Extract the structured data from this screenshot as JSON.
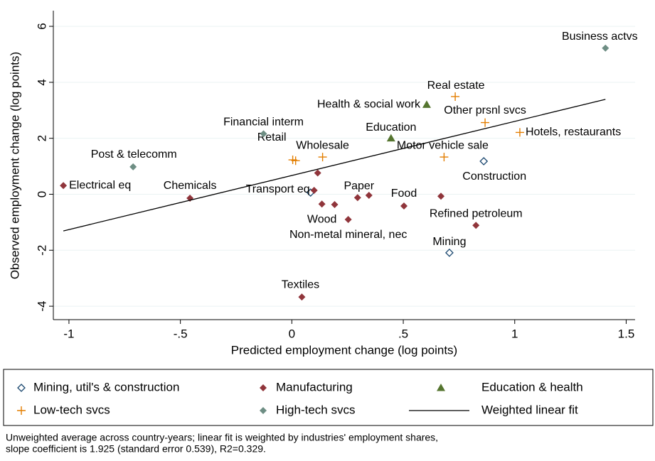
{
  "chart_data": {
    "type": "scatter",
    "x_label": "Predicted employment change (log points)",
    "y_label": "Observed employment change (log points)",
    "xlim": [
      -1.07,
      1.54
    ],
    "ylim": [
      -4.48,
      6.56
    ],
    "xticks": [
      -1,
      {
        "value": -0.5,
        "label": "-.5"
      },
      0,
      {
        "value": 0.5,
        "label": ".5"
      },
      1,
      1.5
    ],
    "yticks": [
      -4,
      -2,
      0,
      2,
      4,
      6
    ],
    "grid": true,
    "series": [
      {
        "name": "Mining, util's & construction",
        "color": "#1a476f",
        "marker": "hollow-diamond",
        "x": [
          0.861,
          0.707,
          0.084
        ],
        "y": [
          1.18,
          -2.09,
          0.06
        ],
        "labels": [
          "Construction",
          "Mining",
          null
        ]
      },
      {
        "name": "Manufacturing",
        "color": "#90353b",
        "marker": "diamond",
        "x": [
          -1.025,
          -0.457,
          0.1,
          0.116,
          0.135,
          0.192,
          0.253,
          0.295,
          0.346,
          0.503,
          0.669,
          0.826,
          0.045
        ],
        "y": [
          0.31,
          -0.14,
          0.14,
          0.76,
          -0.35,
          -0.37,
          -0.9,
          -0.12,
          -0.04,
          -0.42,
          -0.07,
          -1.11,
          -3.67
        ],
        "labels": [
          "Electrical eq",
          "Chemicals",
          "Transport eq",
          null,
          "Wood",
          null,
          "Non-metal mineral, nec",
          "Paper",
          null,
          "Food",
          null,
          "Refined petroleum",
          "Textiles"
        ]
      },
      {
        "name": "Education & health",
        "color": "#55752f",
        "marker": "triangle",
        "x": [
          0.445,
          0.605
        ],
        "y": [
          2.0,
          3.2
        ],
        "labels": [
          "Education",
          "Health & social work"
        ]
      },
      {
        "name": "Low-tech svcs",
        "color": "#e37e00",
        "marker": "plus",
        "x": [
          0.733,
          0.867,
          1.023,
          0.683,
          0.138,
          0.004,
          0.017
        ],
        "y": [
          3.49,
          2.56,
          2.21,
          1.33,
          1.33,
          1.23,
          1.2
        ],
        "labels": [
          "Real estate",
          "Other prsnl svcs",
          "Hotels, restaurants",
          "Motor vehicle sale",
          "Wholesale",
          "Retail",
          null
        ]
      },
      {
        "name": "High-tech svcs",
        "color": "#6e8e84",
        "marker": "diamond",
        "x": [
          1.407,
          -0.127,
          -0.712
        ],
        "y": [
          5.22,
          2.16,
          0.98
        ],
        "labels": [
          "Business actvs",
          "Financial interm",
          "Post & telecomm"
        ]
      },
      {
        "name": "Weighted linear fit",
        "color": "#000000",
        "marker": "line",
        "x": [
          -1.025,
          1.407
        ],
        "y": [
          -1.31,
          3.39
        ]
      }
    ],
    "note": [
      "Unweighted average across country-years; linear fit is weighted by industries' employment shares,",
      "slope coefficient is 1.925 (standard error 0.539), R2=0.329."
    ]
  }
}
